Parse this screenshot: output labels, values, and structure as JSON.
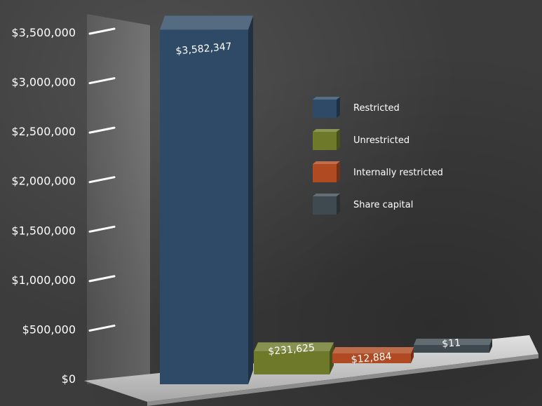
{
  "chart_data": {
    "type": "bar",
    "title": "",
    "xlabel": "",
    "ylabel": "",
    "ylim": [
      0,
      3500000
    ],
    "ticks": [
      {
        "value": 0,
        "label": "$0"
      },
      {
        "value": 500000,
        "label": "$500,000"
      },
      {
        "value": 1000000,
        "label": "$1,000,000"
      },
      {
        "value": 1500000,
        "label": "$1,500,000"
      },
      {
        "value": 2000000,
        "label": "$2,000,000"
      },
      {
        "value": 2500000,
        "label": "$2,500,000"
      },
      {
        "value": 3000000,
        "label": "$3,000,000"
      },
      {
        "value": 3500000,
        "label": "$3,500,000"
      }
    ],
    "categories": [
      "Restricted",
      "Unrestricted",
      "Internally restricted",
      "Share capital"
    ],
    "values": [
      3582347,
      231625,
      12884,
      11
    ],
    "value_labels": [
      "$3,582,347",
      "$231,625",
      "$12,884",
      "$11"
    ],
    "colors": [
      "#2e4a66",
      "#6e7a2a",
      "#b04a22",
      "#3e4a50"
    ],
    "legend_position": "right",
    "grid": false,
    "style": "3d"
  }
}
